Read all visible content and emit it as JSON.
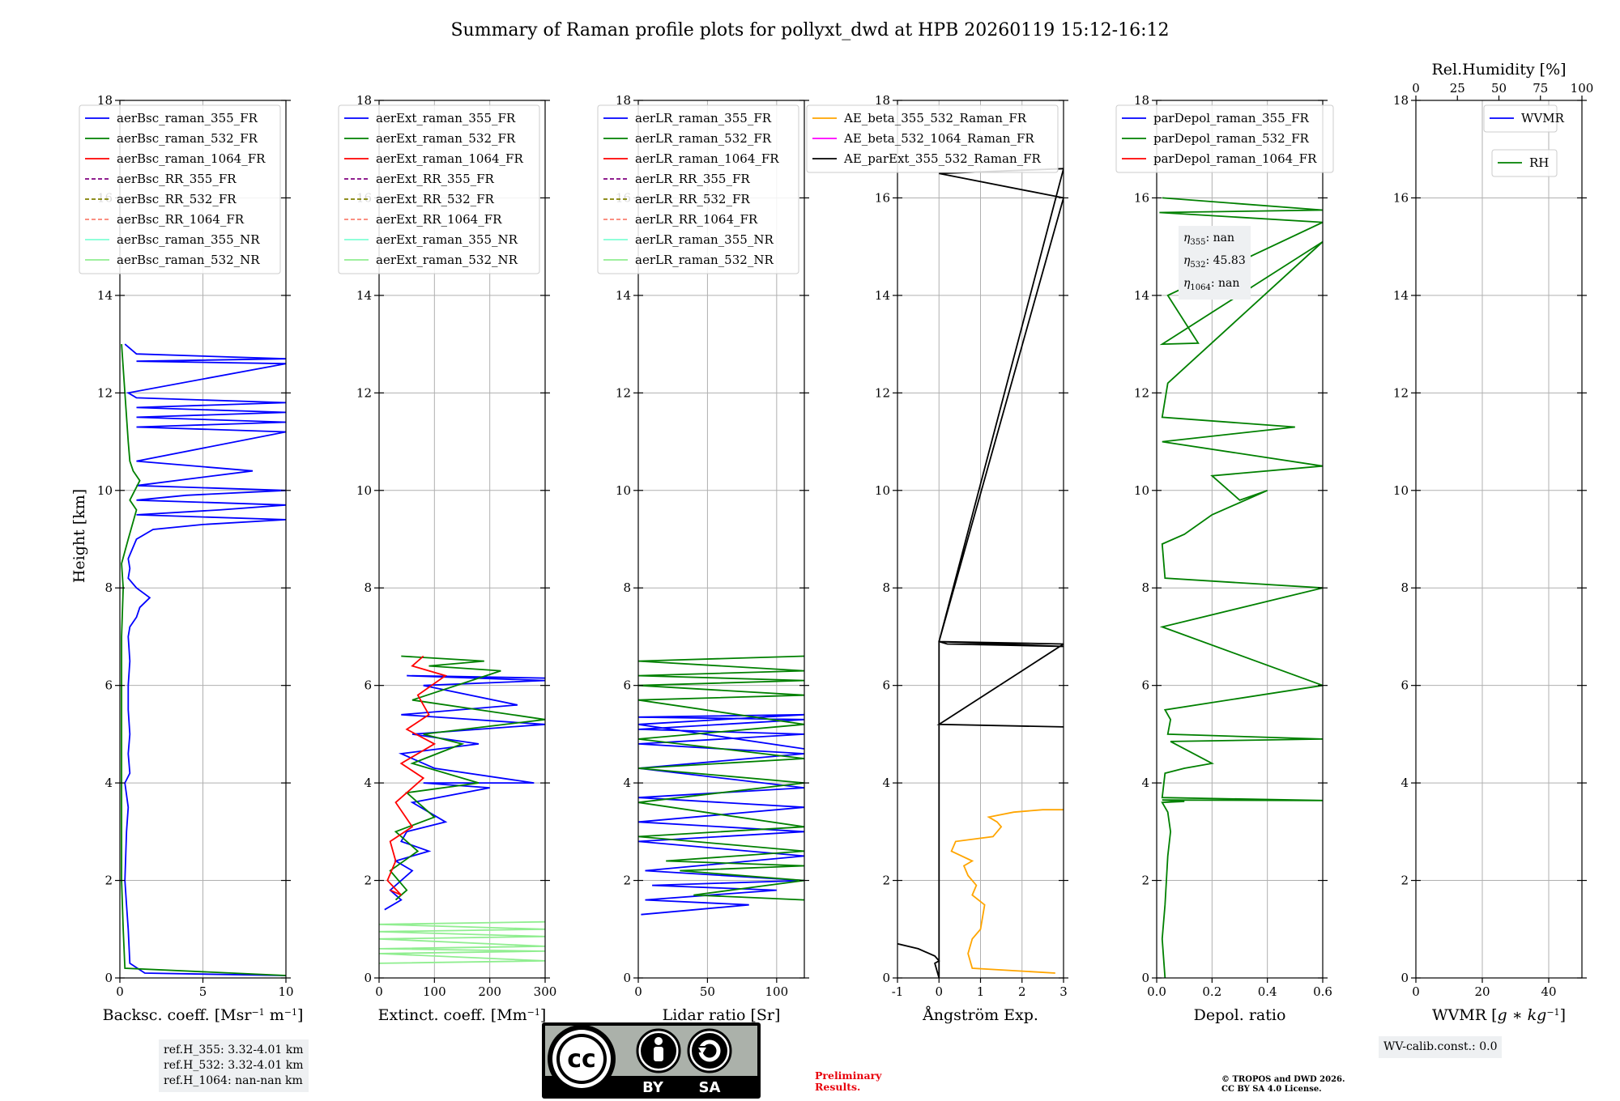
{
  "figure": {
    "title": "Summary of Raman profile plots for pollyxt_dwd at HPB 20260119 15:12-16:12",
    "ylabel": "Height [km]"
  },
  "notes": {
    "refH": [
      "ref.H_355: 3.32-4.01 km",
      "ref.H_532: 3.32-4.01 km",
      "ref.H_1064: nan-nan km"
    ],
    "eta": [
      {
        "sym": "η",
        "sub": "355",
        "val": ": nan"
      },
      {
        "sym": "η",
        "sub": "532",
        "val": ": 45.83"
      },
      {
        "sym": "η",
        "sub": "1064",
        "val": ": nan"
      }
    ],
    "wv_calib": "WV-calib.const.: 0.0",
    "preliminary": [
      "Preliminary",
      "Results."
    ],
    "copyright": [
      "© TROPOS and DWD 2026.",
      "CC BY SA 4.0 License."
    ],
    "cc_badge": {
      "main": "cc",
      "by": "BY",
      "sa": "SA"
    }
  },
  "chart_data": [
    {
      "id": "backscatter",
      "type": "line",
      "xlabel_html": "Backsc. coeff. [Msr<tspan baseline-shift=\"super\" font-size=\"11\">−1</tspan> m<tspan baseline-shift=\"super\" font-size=\"11\">−1</tspan>]",
      "xlabel": "Backsc. coeff. [Msr−1 m−1]",
      "xlim": [
        0,
        10
      ],
      "ylim": [
        0,
        18
      ],
      "xticks": [
        0,
        5,
        10
      ],
      "legend": [
        {
          "label": "aerBsc_raman_355_FR",
          "color": "#0000ff",
          "dash": false
        },
        {
          "label": "aerBsc_raman_532_FR",
          "color": "#008000",
          "dash": false
        },
        {
          "label": "aerBsc_raman_1064_FR",
          "color": "#ff0000",
          "dash": false
        },
        {
          "label": "aerBsc_RR_355_FR",
          "color": "#800080",
          "dash": true
        },
        {
          "label": "aerBsc_RR_532_FR",
          "color": "#808000",
          "dash": true
        },
        {
          "label": "aerBsc_RR_1064_FR",
          "color": "#fa8072",
          "dash": true
        },
        {
          "label": "aerBsc_raman_355_NR",
          "color": "#7fffd4",
          "dash": false
        },
        {
          "label": "aerBsc_raman_532_NR",
          "color": "#90ee90",
          "dash": false
        }
      ],
      "series": [
        {
          "name": "aerBsc_raman_355_FR",
          "color": "#0000ff",
          "x": [
            10,
            1.5,
            0.6,
            0.5,
            0.4,
            0.3,
            0.35,
            0.4,
            0.5,
            0.3,
            0.6,
            0.5,
            0.6,
            0.5,
            0.5,
            0.6,
            0.5,
            0.6,
            1.0,
            1.2,
            1.8,
            1.0,
            0.5,
            0.6,
            0.5,
            1.0,
            2.0,
            5,
            10,
            1,
            6,
            10,
            1,
            4,
            10,
            1,
            8,
            1,
            10,
            1,
            10,
            1,
            10,
            1,
            10,
            1,
            0.5,
            10,
            1,
            10,
            1,
            0.3
          ],
          "y": [
            0.05,
            0.1,
            0.3,
            1,
            1.5,
            2,
            2.5,
            3,
            3.5,
            4,
            4.2,
            4.6,
            5,
            5.5,
            6,
            6.5,
            7,
            7.2,
            7.4,
            7.6,
            7.8,
            8,
            8.2,
            8.4,
            8.6,
            9.0,
            9.2,
            9.3,
            9.4,
            9.5,
            9.6,
            9.7,
            9.8,
            9.9,
            10.0,
            10.1,
            10.4,
            10.6,
            11.2,
            11.3,
            11.4,
            11.5,
            11.6,
            11.7,
            11.8,
            11.9,
            12.0,
            12.6,
            12.65,
            12.7,
            12.8,
            13
          ]
        },
        {
          "name": "aerBsc_raman_532_FR",
          "color": "#008000",
          "x": [
            10,
            0.3,
            0.2,
            0.1,
            0.1,
            0.1,
            0.1,
            0.2,
            0.1,
            0.5,
            1.0,
            0.6,
            1.2,
            0.8,
            0.6,
            0.5,
            0.3,
            0.1
          ],
          "y": [
            0.05,
            0.2,
            1,
            2,
            4,
            6,
            7,
            8,
            8.5,
            9.0,
            9.6,
            9.8,
            10.2,
            10.4,
            10.6,
            11,
            12,
            13
          ]
        }
      ]
    },
    {
      "id": "extinction",
      "type": "line",
      "xlabel_html": "Extinct. coeff. [Mm<tspan baseline-shift=\"super\" font-size=\"11\">−1</tspan>]",
      "xlabel": "Extinct. coeff. [Mm−1]",
      "xlim": [
        0,
        300
      ],
      "ylim": [
        0,
        18
      ],
      "xticks": [
        0,
        100,
        200,
        300
      ],
      "legend": [
        {
          "label": "aerExt_raman_355_FR",
          "color": "#0000ff",
          "dash": false
        },
        {
          "label": "aerExt_raman_532_FR",
          "color": "#008000",
          "dash": false
        },
        {
          "label": "aerExt_raman_1064_FR",
          "color": "#ff0000",
          "dash": false
        },
        {
          "label": "aerExt_RR_355_FR",
          "color": "#800080",
          "dash": true
        },
        {
          "label": "aerExt_RR_532_FR",
          "color": "#808000",
          "dash": true
        },
        {
          "label": "aerExt_RR_1064_FR",
          "color": "#fa8072",
          "dash": true
        },
        {
          "label": "aerExt_raman_355_NR",
          "color": "#7fffd4",
          "dash": false
        },
        {
          "label": "aerExt_raman_532_NR",
          "color": "#90ee90",
          "dash": false
        }
      ],
      "series": [
        {
          "name": "aerExt_raman_355_FR",
          "color": "#0000ff",
          "x": [
            10,
            40,
            20,
            60,
            30,
            90,
            40,
            50,
            120,
            60,
            200,
            80,
            280,
            100,
            40,
            180,
            60,
            300,
            40,
            250,
            80,
            300,
            50,
            300
          ],
          "y": [
            1.4,
            1.6,
            1.8,
            2.2,
            2.4,
            2.6,
            2.8,
            3.0,
            3.2,
            3.6,
            3.9,
            4.0,
            4.0,
            4.3,
            4.6,
            4.8,
            5.0,
            5.2,
            5.4,
            5.6,
            6.0,
            6.1,
            6.2,
            6.15
          ]
        },
        {
          "name": "aerExt_raman_532_FR",
          "color": "#008000",
          "x": [
            30,
            50,
            20,
            70,
            30,
            100,
            50,
            180,
            60,
            150,
            80,
            300,
            60,
            220,
            90,
            190,
            40
          ],
          "y": [
            1.6,
            1.8,
            2.2,
            2.6,
            3.0,
            3.3,
            3.8,
            4.0,
            4.4,
            4.8,
            5.0,
            5.3,
            5.7,
            6.3,
            6.4,
            6.5,
            6.6
          ]
        },
        {
          "name": "aerExt_raman_1064_FR",
          "color": "#ff0000",
          "x": [
            20,
            40,
            15,
            30,
            20,
            60,
            30,
            80,
            40,
            100,
            50,
            90,
            70,
            120,
            60,
            80
          ],
          "y": [
            1.8,
            1.7,
            2.0,
            2.4,
            2.8,
            3.1,
            3.6,
            4.1,
            4.4,
            4.8,
            5.1,
            5.4,
            5.8,
            6.2,
            6.4,
            6.6
          ]
        },
        {
          "name": "aerExt_raman_532_NR",
          "color": "#90ee90",
          "x": [
            0,
            300,
            0,
            300,
            0,
            300,
            0,
            300,
            0,
            300,
            0,
            300
          ],
          "y": [
            0.3,
            0.35,
            0.5,
            0.55,
            0.6,
            0.65,
            0.8,
            0.85,
            0.95,
            1.0,
            1.1,
            1.15
          ]
        }
      ]
    },
    {
      "id": "lidarratio",
      "type": "line",
      "xlabel_html": "Lidar ratio [Sr]",
      "xlabel": "Lidar ratio [Sr]",
      "xlim": [
        0,
        120
      ],
      "ylim": [
        0,
        18
      ],
      "xticks": [
        0,
        50,
        100
      ],
      "legend": [
        {
          "label": "aerLR_raman_355_FR",
          "color": "#0000ff",
          "dash": false
        },
        {
          "label": "aerLR_raman_532_FR",
          "color": "#008000",
          "dash": false
        },
        {
          "label": "aerLR_raman_1064_FR",
          "color": "#ff0000",
          "dash": false
        },
        {
          "label": "aerLR_RR_355_FR",
          "color": "#800080",
          "dash": true
        },
        {
          "label": "aerLR_RR_532_FR",
          "color": "#808000",
          "dash": true
        },
        {
          "label": "aerLR_RR_1064_FR",
          "color": "#fa8072",
          "dash": true
        },
        {
          "label": "aerLR_raman_355_NR",
          "color": "#7fffd4",
          "dash": false
        },
        {
          "label": "aerLR_raman_532_NR",
          "color": "#90ee90",
          "dash": false
        }
      ],
      "series": [
        {
          "name": "aerLR_raman_355_FR",
          "color": "#0000ff",
          "x": [
            2,
            80,
            5,
            100,
            10,
            120,
            5,
            120,
            0,
            120,
            0,
            120,
            0,
            120,
            0,
            120,
            0,
            120,
            0,
            120,
            0,
            120,
            0,
            120
          ],
          "y": [
            1.3,
            1.5,
            1.6,
            1.8,
            1.9,
            2.0,
            2.2,
            2.5,
            2.8,
            3.0,
            3.2,
            3.5,
            3.7,
            3.9,
            4.3,
            4.6,
            4.8,
            5.0,
            5.1,
            5.3,
            5.35,
            5.4,
            5.2,
            4.7
          ]
        },
        {
          "name": "aerLR_raman_532_FR",
          "color": "#008000",
          "x": [
            120,
            40,
            120,
            30,
            120,
            20,
            120,
            0,
            120,
            0,
            120,
            0,
            120,
            0,
            120,
            0,
            120,
            0,
            120,
            0,
            120,
            0,
            120
          ],
          "y": [
            1.6,
            1.7,
            2.0,
            2.2,
            2.3,
            2.4,
            2.6,
            2.9,
            3.1,
            3.6,
            4.0,
            4.3,
            4.5,
            4.9,
            5.2,
            5.7,
            5.8,
            6.0,
            6.1,
            6.2,
            6.3,
            6.5,
            6.6
          ]
        },
        {
          "name": "aerLR_raman_532_NR",
          "color": "#90ee90",
          "x": [],
          "y": []
        }
      ]
    },
    {
      "id": "angstrom",
      "type": "line",
      "xlabel_html": "Ångström Exp.",
      "xlabel": "Ångström Exp.",
      "xlim": [
        -1,
        3
      ],
      "ylim": [
        0,
        18
      ],
      "xticks": [
        -1,
        0,
        1,
        2,
        3
      ],
      "legend": [
        {
          "label": "AE_beta_355_532_Raman_FR",
          "color": "#ffa500",
          "dash": false
        },
        {
          "label": "AE_beta_532_1064_Raman_FR",
          "color": "#ff00ff",
          "dash": false
        },
        {
          "label": "AE_parExt_355_532_Raman_FR",
          "color": "#000000",
          "dash": false
        }
      ],
      "series": [
        {
          "name": "AE_beta_355_532_Raman_FR",
          "color": "#ffa500",
          "x": [
            2.8,
            0.8,
            0.7,
            0.8,
            1.0,
            1.1,
            0.8,
            0.9,
            0.7,
            0.6,
            0.8,
            0.3,
            0.4,
            1.3,
            1.5,
            1.4,
            1.2,
            1.8,
            2.5,
            3.0
          ],
          "y": [
            0.1,
            0.2,
            0.5,
            0.8,
            1.0,
            1.5,
            1.7,
            1.9,
            2.1,
            2.3,
            2.4,
            2.6,
            2.8,
            2.9,
            3.1,
            3.2,
            3.3,
            3.4,
            3.45,
            3.45
          ]
        },
        {
          "name": "AE_parExt_355_532_Raman_FR",
          "color": "#000000",
          "x": [
            -1,
            -0.5,
            -0.1,
            0,
            -0.1,
            0,
            0,
            0.2,
            3,
            0,
            3,
            0,
            3,
            0,
            3,
            0,
            3
          ],
          "y": [
            0.7,
            0.6,
            0.45,
            0.35,
            0.3,
            0,
            6.9,
            6.85,
            6.8,
            6.9,
            16,
            16.5,
            16.6,
            6.9,
            6.85,
            5.2,
            5.15
          ]
        }
      ]
    },
    {
      "id": "depol",
      "type": "line",
      "xlabel_html": "Depol. ratio",
      "xlabel": "Depol. ratio",
      "xlim": [
        0,
        0.6
      ],
      "ylim": [
        0,
        18
      ],
      "xticks": [
        0.0,
        0.2,
        0.4,
        0.6
      ],
      "legend": [
        {
          "label": "parDepol_raman_355_FR",
          "color": "#0000ff",
          "dash": false
        },
        {
          "label": "parDepol_raman_532_FR",
          "color": "#008000",
          "dash": false
        },
        {
          "label": "parDepol_raman_1064_FR",
          "color": "#ff0000",
          "dash": false
        }
      ],
      "series": [
        {
          "name": "parDepol_raman_532_FR",
          "color": "#008000",
          "x": [
            0.03,
            0.02,
            0.03,
            0.04,
            0.05,
            0.04,
            0.02,
            0.1,
            0.02,
            0.6,
            0.02,
            0.03,
            0.1,
            0.2,
            0.05,
            0.6,
            0.04,
            0.05,
            0.03,
            0.6,
            0.02,
            0.6,
            0.03,
            0.02,
            0.1,
            0.2,
            0.4,
            0.3,
            0.2,
            0.6,
            0.02,
            0.5,
            0.02,
            0.04,
            0.6,
            0.02,
            0.15,
            0.04,
            0.6,
            0.01,
            0.6,
            0.02
          ],
          "y": [
            0,
            0.8,
            1.5,
            2.5,
            3.0,
            3.4,
            3.6,
            3.62,
            3.65,
            3.64,
            3.7,
            4.2,
            4.3,
            4.4,
            4.85,
            4.9,
            5.0,
            5.3,
            5.5,
            6.0,
            7.2,
            8.0,
            8.2,
            8.9,
            9.1,
            9.5,
            10.0,
            9.8,
            10.3,
            10.5,
            11.0,
            11.3,
            11.5,
            12.2,
            15.1,
            13.0,
            13.02,
            14.0,
            15.5,
            15.7,
            15.75,
            16.0
          ]
        }
      ]
    },
    {
      "id": "wvmr",
      "type": "line",
      "xlabel_html": "WVMR [<tspan font-style=\"italic\">g</tspan> ∗ <tspan font-style=\"italic\">kg</tspan><tspan baseline-shift=\"super\" font-size=\"11\">−1</tspan>]",
      "xlabel": "WVMR [g ∗ kg−1]",
      "xlim": [
        0,
        50
      ],
      "ylim": [
        0,
        18
      ],
      "xticks": [
        0,
        20,
        40
      ],
      "top_xlabel": "Rel.Humidity [%]",
      "top_xlim": [
        0,
        100
      ],
      "top_xticks": [
        0,
        25,
        50,
        75,
        100
      ],
      "legend": [
        {
          "label": "WVMR",
          "color": "#0000ff",
          "dash": false
        }
      ],
      "legend2": [
        {
          "label": "RH",
          "color": "#008000",
          "dash": false
        }
      ],
      "series": []
    }
  ]
}
